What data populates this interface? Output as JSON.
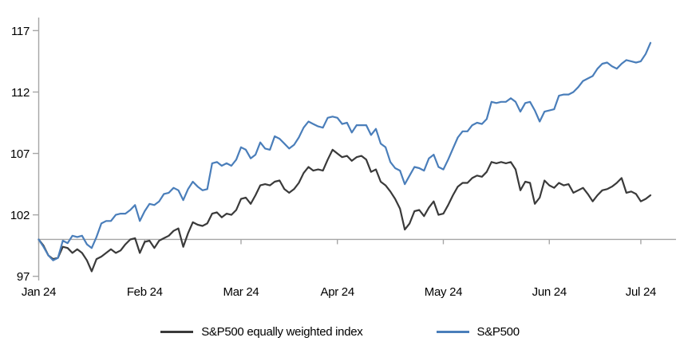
{
  "chart_data": {
    "type": "line",
    "title": "",
    "xlabel": "",
    "ylabel": "",
    "grid": "none",
    "legend_position": "bottom-center",
    "baseline_value": 100,
    "y_ticks": [
      97,
      102,
      107,
      112,
      117
    ],
    "y_range": [
      97,
      118.2
    ],
    "x_tick_labels": [
      "Jan 24",
      "Feb 24",
      "Mar 24",
      "Apr 24",
      "May 24",
      "Jun 24",
      "Jul 24"
    ],
    "x_tick_indices": [
      0,
      22,
      42,
      62,
      84,
      106,
      125
    ],
    "series": [
      {
        "name": "S&P500 equally weighted index",
        "color": "#3a3a3a",
        "values": [
          100.0,
          99.5,
          98.7,
          98.4,
          98.5,
          99.4,
          99.3,
          98.9,
          99.2,
          98.9,
          98.3,
          97.4,
          98.4,
          98.6,
          98.9,
          99.2,
          98.9,
          99.1,
          99.6,
          100.0,
          100.1,
          98.9,
          99.8,
          99.9,
          99.3,
          99.9,
          100.1,
          100.3,
          100.7,
          100.9,
          99.4,
          100.5,
          101.4,
          101.2,
          101.1,
          101.3,
          102.1,
          102.2,
          101.8,
          102.1,
          102.0,
          102.4,
          103.3,
          103.4,
          102.9,
          103.6,
          104.4,
          104.5,
          104.4,
          104.7,
          104.8,
          104.1,
          103.8,
          104.1,
          104.6,
          105.4,
          105.9,
          105.6,
          105.7,
          105.6,
          106.5,
          107.3,
          107.0,
          106.7,
          106.8,
          106.4,
          106.7,
          106.8,
          106.5,
          105.5,
          105.7,
          104.7,
          104.4,
          103.9,
          103.3,
          102.5,
          100.8,
          101.3,
          102.3,
          102.4,
          101.9,
          102.6,
          103.1,
          102.0,
          102.1,
          102.8,
          103.6,
          104.3,
          104.6,
          104.6,
          105.0,
          105.2,
          105.1,
          105.5,
          106.3,
          106.2,
          106.3,
          106.2,
          106.3,
          105.7,
          104.0,
          104.7,
          104.6,
          102.9,
          103.4,
          104.8,
          104.4,
          104.2,
          104.6,
          104.4,
          104.5,
          103.8,
          104.0,
          104.2,
          103.7,
          103.1,
          103.6,
          104.0,
          104.1,
          104.3,
          104.6,
          105.0,
          103.8,
          103.9,
          103.7,
          103.1,
          103.3,
          103.6
        ]
      },
      {
        "name": "S&P500",
        "color": "#4a7eba",
        "values": [
          100.0,
          99.4,
          98.7,
          98.3,
          98.5,
          99.9,
          99.7,
          100.3,
          100.2,
          100.3,
          99.6,
          99.3,
          100.2,
          101.3,
          101.5,
          101.5,
          102.0,
          102.1,
          102.1,
          102.4,
          102.8,
          101.5,
          102.3,
          102.9,
          102.8,
          103.1,
          103.7,
          103.8,
          104.2,
          104.0,
          103.2,
          104.1,
          104.7,
          104.3,
          104.0,
          104.1,
          106.2,
          106.3,
          106.0,
          106.2,
          106.0,
          106.5,
          107.5,
          107.3,
          106.6,
          106.9,
          107.9,
          107.4,
          107.3,
          108.4,
          108.2,
          107.8,
          107.4,
          107.7,
          108.3,
          109.1,
          109.6,
          109.4,
          109.2,
          109.1,
          109.9,
          110.0,
          109.9,
          109.4,
          109.5,
          108.7,
          109.3,
          109.3,
          109.3,
          108.5,
          109.0,
          107.8,
          107.5,
          106.3,
          105.8,
          105.6,
          104.5,
          105.2,
          105.9,
          105.8,
          105.6,
          106.6,
          106.9,
          105.9,
          105.7,
          106.5,
          107.4,
          108.3,
          108.8,
          108.8,
          109.3,
          109.5,
          109.4,
          109.8,
          111.2,
          111.1,
          111.2,
          111.2,
          111.5,
          111.2,
          110.4,
          111.1,
          111.2,
          110.5,
          109.6,
          110.4,
          110.5,
          110.6,
          111.7,
          111.8,
          111.8,
          112.0,
          112.4,
          112.9,
          113.1,
          113.3,
          113.9,
          114.3,
          114.4,
          114.1,
          113.9,
          114.3,
          114.6,
          114.5,
          114.4,
          114.5,
          115.1,
          116.0
        ]
      }
    ]
  },
  "colors": {
    "axis": "#a6a6a6",
    "baseline": "#a6a6a6",
    "background": "#ffffff",
    "text": "#000000"
  }
}
